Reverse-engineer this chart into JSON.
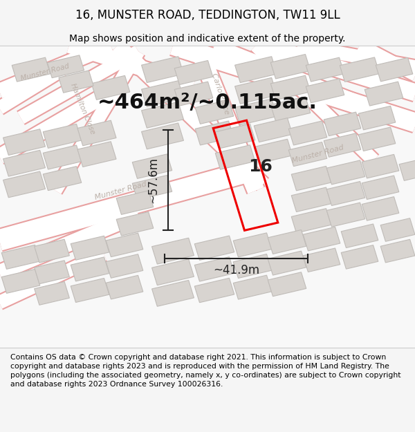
{
  "title": "16, MUNSTER ROAD, TEDDINGTON, TW11 9LL",
  "subtitle": "Map shows position and indicative extent of the property.",
  "area_label": "~464m²/~0.115ac.",
  "number_label": "16",
  "dim_width": "~41.9m",
  "dim_height": "~57.6m",
  "footer": "Contains OS data © Crown copyright and database right 2021. This information is subject to Crown copyright and database rights 2023 and is reproduced with the permission of HM Land Registry. The polygons (including the associated geometry, namely x, y co-ordinates) are subject to Crown copyright and database rights 2023 Ordnance Survey 100026316.",
  "page_bg": "#f5f5f5",
  "map_bg": "#f8f8f8",
  "footer_bg": "#ffffff",
  "road_fill": "#ffffff",
  "road_outline": "#e8a0a0",
  "building_fill": "#d8d4d0",
  "building_edge": "#c0bcb8",
  "highlight_color": "#ee0000",
  "dim_line_color": "#222222",
  "title_fontsize": 12,
  "subtitle_fontsize": 10,
  "area_fontsize": 22,
  "number_fontsize": 18,
  "dim_fontsize": 12,
  "road_label_fontsize": 8,
  "footer_fontsize": 7.8
}
